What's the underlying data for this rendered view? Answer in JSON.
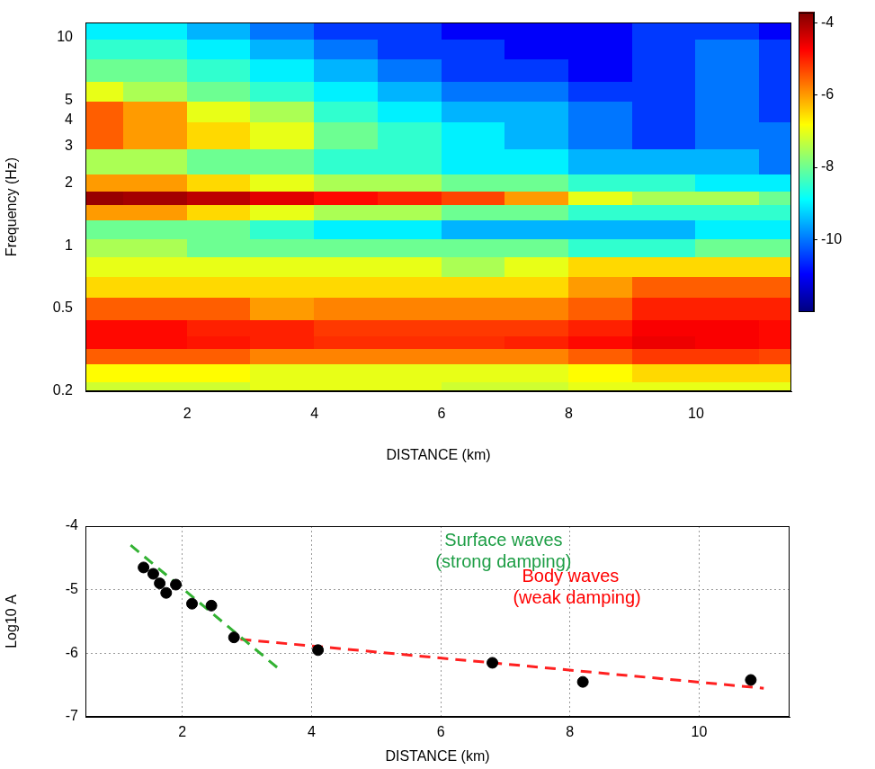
{
  "chart_data": [
    {
      "type": "heatmap",
      "xlabel": "DISTANCE (km)",
      "ylabel": "Frequency (Hz)",
      "log": "y",
      "xlim": [
        0.4,
        11.5
      ],
      "ylim": [
        0.2,
        11.8
      ],
      "xticks": [
        2,
        4,
        6,
        8,
        10
      ],
      "yticks": [
        0.2,
        0.5,
        1,
        2,
        3,
        4,
        5,
        10
      ],
      "x": [
        0.5,
        1.5,
        2.5,
        3.5,
        4.5,
        5.5,
        6.5,
        7.5,
        8.5,
        9.5,
        10.5,
        11.5
      ],
      "y": [
        0.2,
        0.25,
        0.3,
        0.35,
        0.4,
        0.5,
        0.65,
        0.8,
        1,
        1.2,
        1.5,
        1.7,
        2,
        2.5,
        3.5,
        4.5,
        5.5,
        7,
        9,
        11
      ],
      "cells": [
        [
          -7.2,
          -7.2,
          -7.2,
          -7,
          -7,
          -7,
          -7.2,
          -7.2,
          -7,
          -7,
          -7,
          -7
        ],
        [
          -6.8,
          -6.8,
          -6.8,
          -7,
          -7,
          -7,
          -7,
          -7,
          -6.8,
          -6.5,
          -6.5,
          -6.5
        ],
        [
          -5.5,
          -5.5,
          -5.5,
          -5.8,
          -5.8,
          -5.8,
          -5.8,
          -5.8,
          -5.5,
          -5.2,
          -5.2,
          -5.3
        ],
        [
          -4.8,
          -4.8,
          -4.9,
          -5,
          -5.1,
          -5.1,
          -5.1,
          -5,
          -4.8,
          -4.6,
          -4.7,
          -4.8
        ],
        [
          -4.8,
          -4.8,
          -5,
          -5,
          -5.2,
          -5.2,
          -5.2,
          -5.2,
          -5,
          -4.7,
          -4.7,
          -4.8
        ],
        [
          -5.5,
          -5.5,
          -5.5,
          -6,
          -5.8,
          -5.8,
          -5.8,
          -5.8,
          -5.5,
          -5,
          -5,
          -5
        ],
        [
          -6.5,
          -6.5,
          -6.5,
          -6.5,
          -6.5,
          -6.5,
          -6.5,
          -6.5,
          -6,
          -5.5,
          -5.5,
          -5.5
        ],
        [
          -7,
          -7,
          -7,
          -7,
          -7,
          -7,
          -7.5,
          -7,
          -6.5,
          -6.5,
          -6.5,
          -6.5
        ],
        [
          -7.5,
          -7.5,
          -8,
          -8,
          -8,
          -8,
          -8,
          -8,
          -8.5,
          -8.5,
          -8,
          -8
        ],
        [
          -8,
          -8,
          -8,
          -8.5,
          -9,
          -9,
          -9.5,
          -9.5,
          -9.5,
          -9.5,
          -9,
          -9
        ],
        [
          -6,
          -6,
          -6.5,
          -7,
          -7.5,
          -7.5,
          -8,
          -8,
          -8.5,
          -8.5,
          -8.5,
          -8.5
        ],
        [
          -3.9,
          -4,
          -4.2,
          -4.5,
          -4.8,
          -5,
          -5.3,
          -6,
          -7,
          -7.5,
          -7.5,
          -8
        ],
        [
          -6,
          -6,
          -6.5,
          -7,
          -7.5,
          -7.5,
          -8,
          -8,
          -8.5,
          -8.5,
          -9,
          -9
        ],
        [
          -7.5,
          -7.5,
          -8,
          -8,
          -8.5,
          -8.5,
          -9,
          -9,
          -9.5,
          -9.5,
          -9.5,
          -10
        ],
        [
          -5.5,
          -6,
          -6.5,
          -7,
          -8,
          -8.5,
          -9,
          -9.5,
          -10,
          -10.5,
          -10,
          -10
        ],
        [
          -5.5,
          -6,
          -7,
          -7.5,
          -8.5,
          -9,
          -9.5,
          -9.5,
          -10,
          -10.5,
          -10,
          -10.5
        ],
        [
          -7,
          -7.5,
          -8,
          -8.5,
          -9,
          -9.5,
          -10,
          -10,
          -10.5,
          -10.5,
          -10,
          -10.5
        ],
        [
          -8,
          -8,
          -8.5,
          -9,
          -9.5,
          -10,
          -10.5,
          -10.5,
          -11,
          -10.5,
          -10,
          -10.5
        ],
        [
          -8.5,
          -8.5,
          -9,
          -9.5,
          -10,
          -10.5,
          -10.5,
          -11,
          -11,
          -10.5,
          -10,
          -10.5
        ],
        [
          -9,
          -9,
          -9.5,
          -10,
          -10.5,
          -10.5,
          -11,
          -11,
          -11,
          -10.5,
          -10.5,
          -11
        ]
      ],
      "colorbar_range": [
        -12,
        -3.7
      ],
      "colorbar_ticks": [
        -4,
        -6,
        -8,
        -10
      ]
    },
    {
      "type": "scatter",
      "xlabel": "DISTANCE (km)",
      "ylabel": "Log10 A",
      "xlim": [
        0.5,
        11.4
      ],
      "ylim": [
        -7,
        -4
      ],
      "xticks": [
        2,
        4,
        6,
        8,
        10
      ],
      "yticks": [
        -7,
        -6,
        -5,
        -4
      ],
      "grid": true,
      "series": [
        {
          "type": "scatter",
          "color": "#000000",
          "marker": "circle",
          "x": [
            1.4,
            1.55,
            1.65,
            1.75,
            1.9,
            2.15,
            2.45,
            2.8,
            4.1,
            6.8,
            8.2,
            10.8
          ],
          "values": [
            -4.65,
            -4.75,
            -4.9,
            -5.05,
            -4.92,
            -5.22,
            -5.25,
            -5.75,
            -5.95,
            -6.15,
            -6.45,
            -6.42
          ]
        },
        {
          "type": "line",
          "color": "#33b233",
          "line_style": "dashed",
          "x": [
            1.2,
            3.5
          ],
          "values": [
            -4.3,
            -6.25
          ]
        },
        {
          "type": "line",
          "color": "#ff2020",
          "line_style": "dashed",
          "x": [
            2.9,
            11
          ],
          "values": [
            -5.78,
            -6.55
          ]
        }
      ],
      "annotations": [
        {
          "text": [
            "Surface waves",
            "(strong damping)"
          ],
          "color": "#1e9e46"
        },
        {
          "text": [
            "Body waves",
            "(weak damping)"
          ],
          "color": "#ff0000"
        }
      ]
    }
  ]
}
